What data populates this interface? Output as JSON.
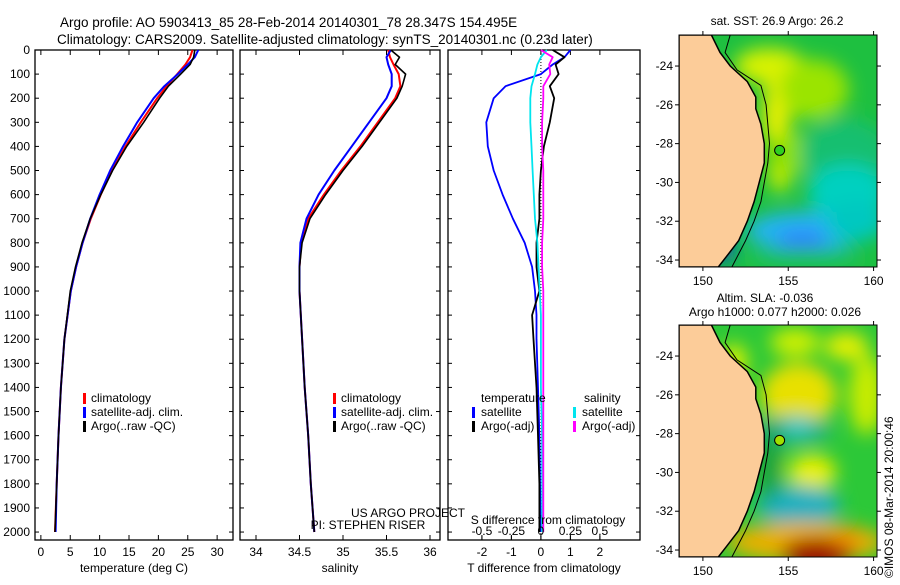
{
  "title": {
    "line1": "Argo profile: AO 5903413_85 28-Feb-2014 20140301_78 28.347S 154.495E",
    "line2": "Climatology: CARS2009. Satellite-adjusted climatology: synTS_20140301.nc (0.23d later)"
  },
  "credit": {
    "line1": "US ARGO PROJECT",
    "line2": "PI: STEPHEN RISER"
  },
  "stamp": "©IMOS 08-Mar-2014 20:00:46",
  "colors": {
    "climatology": "#ff0000",
    "satellite": "#0000ff",
    "argo": "#000000",
    "sal_satellite": "#00e5ee",
    "sal_argo": "#ff00ff",
    "land": "#fccc99"
  },
  "chart_data": [
    {
      "type": "line",
      "id": "temperature",
      "xlabel": "temperature (deg C)",
      "ylabel": "",
      "xlim": [
        -1,
        32.7
      ],
      "ylim": [
        2033,
        0
      ],
      "xticks": [
        0,
        5,
        10,
        15,
        20,
        25,
        30
      ],
      "xtick_labels": [
        "0",
        "5",
        "10",
        "15",
        "20",
        "25",
        "30"
      ],
      "yticks": [
        0,
        100,
        200,
        300,
        400,
        500,
        600,
        700,
        800,
        900,
        1000,
        1100,
        1200,
        1300,
        1400,
        1500,
        1600,
        1700,
        1800,
        1900,
        2000
      ],
      "ytick_labels": [
        "0",
        "100",
        "200",
        "300",
        "400",
        "500",
        "600",
        "700",
        "800",
        "900",
        "1000",
        "1100",
        "1200",
        "1300",
        "1400",
        "1500",
        "1600",
        "1700",
        "1800",
        "1900",
        "2000"
      ],
      "depth": [
        0,
        30,
        60,
        100,
        150,
        200,
        300,
        400,
        500,
        600,
        700,
        800,
        900,
        1000,
        1200,
        1400,
        1600,
        1800,
        2000
      ],
      "legend": [
        "climatology",
        "satellite-adj. clim.",
        "Argo(..raw -QC)"
      ],
      "series": [
        {
          "name": "climatology",
          "values": [
            25.8,
            25.4,
            24.6,
            23.2,
            21.4,
            19.8,
            17.0,
            14.4,
            12.1,
            10.2,
            8.5,
            7.1,
            6.0,
            5.1,
            4.0,
            3.4,
            3.0,
            2.7,
            2.4
          ]
        },
        {
          "name": "satellite-adj. clim.",
          "values": [
            26.8,
            26.2,
            25.0,
            23.3,
            21.0,
            19.2,
            16.4,
            14.0,
            11.8,
            10.0,
            8.4,
            7.1,
            6.0,
            5.1,
            4.0,
            3.4,
            3.0,
            2.7,
            2.5
          ]
        },
        {
          "name": "Argo(..raw -QC)",
          "values": [
            26.2,
            26.0,
            25.4,
            23.8,
            21.7,
            20.2,
            17.5,
            14.6,
            12.2,
            10.2,
            8.4,
            7.0,
            5.9,
            5.0,
            4.0,
            3.4,
            3.0,
            2.7,
            2.4
          ]
        }
      ]
    },
    {
      "type": "line",
      "id": "salinity",
      "xlabel": "salinity",
      "xlim": [
        33.816,
        36.115
      ],
      "ylim": [
        2033,
        0
      ],
      "xticks": [
        34,
        34.5,
        35,
        35.5,
        36
      ],
      "xtick_labels": [
        "34",
        "34.5",
        "35",
        "35.5",
        "36"
      ],
      "depth": [
        0,
        30,
        60,
        100,
        150,
        200,
        300,
        400,
        500,
        600,
        700,
        800,
        900,
        1000,
        1200,
        1400,
        1600,
        1800,
        2000
      ],
      "legend": [
        "climatology",
        "satellite-adj. clim.",
        "Argo(..raw -QC)"
      ],
      "series": [
        {
          "name": "climatology",
          "values": [
            35.52,
            35.54,
            35.58,
            35.64,
            35.66,
            35.6,
            35.4,
            35.2,
            34.98,
            34.78,
            34.6,
            34.52,
            34.5,
            34.5,
            34.53,
            34.56,
            34.6,
            34.63,
            34.67
          ]
        },
        {
          "name": "satellite-adj. clim.",
          "values": [
            35.55,
            35.5,
            35.52,
            35.56,
            35.56,
            35.5,
            35.3,
            35.1,
            34.9,
            34.72,
            34.58,
            34.51,
            34.5,
            34.5,
            34.53,
            34.56,
            34.6,
            34.63,
            34.67
          ]
        },
        {
          "name": "Argo(..raw -QC)",
          "values": [
            35.55,
            35.65,
            35.6,
            35.72,
            35.68,
            35.62,
            35.42,
            35.22,
            35.0,
            34.8,
            34.62,
            34.53,
            34.5,
            34.5,
            34.53,
            34.56,
            34.6,
            34.63,
            34.67
          ]
        }
      ]
    },
    {
      "type": "line",
      "id": "differences",
      "xlabel": "T difference from climatology",
      "x2label": "S difference from climatology",
      "xlim": [
        -3.15,
        3.36
      ],
      "ylim": [
        2033,
        0
      ],
      "xticks": [
        -2,
        -1,
        0,
        1,
        2
      ],
      "xtick_labels": [
        "-2",
        "-1",
        "0",
        "1",
        "2"
      ],
      "x2ticks": [
        -0.5,
        -0.25,
        0,
        0.25,
        0.5
      ],
      "x2tick_labels": [
        "-0.5",
        "-0.25",
        "0",
        "0.25",
        "0.5"
      ],
      "legend": {
        "temperature_title": "temperature",
        "salinity_title": "salinity",
        "items": [
          "satellite",
          "Argo(-adj)",
          "satellite",
          "Argo(-adj)"
        ]
      },
      "depth": [
        0,
        30,
        60,
        100,
        150,
        200,
        300,
        400,
        500,
        600,
        700,
        800,
        900,
        1000,
        1100,
        1200,
        1400,
        1600,
        1800,
        2000
      ],
      "series": [
        {
          "name": "T satellite",
          "units": "degC",
          "values": [
            1.0,
            0.8,
            0.4,
            0.0,
            -1.2,
            -1.6,
            -1.85,
            -1.8,
            -1.6,
            -1.3,
            -0.95,
            -0.55,
            -0.3,
            -0.2,
            -0.15,
            -0.15,
            -0.1,
            -0.05,
            -0.03,
            0.0
          ]
        },
        {
          "name": "T Argo(-adj)",
          "units": "degC",
          "values": [
            0.4,
            0.8,
            0.5,
            0.6,
            0.3,
            0.45,
            0.3,
            0.1,
            0.0,
            -0.05,
            -0.05,
            -0.15,
            -0.15,
            -0.05,
            -0.3,
            -0.25,
            -0.15,
            -0.1,
            -0.05,
            -0.05
          ]
        },
        {
          "name": "S satellite",
          "units": "psu",
          "values": [
            0.05,
            0.0,
            -0.03,
            -0.05,
            -0.08,
            -0.09,
            -0.09,
            -0.08,
            -0.07,
            -0.06,
            -0.05,
            -0.03,
            -0.02,
            -0.01,
            0.0,
            0.0,
            0.0,
            0.01,
            0.01,
            0.01
          ]
        },
        {
          "name": "S Argo(-adj)",
          "units": "psu",
          "values": [
            0.0,
            0.1,
            0.07,
            0.08,
            0.02,
            0.02,
            0.01,
            0.01,
            0.02,
            0.02,
            0.02,
            0.01,
            0.01,
            0.02,
            0.02,
            0.02,
            0.02,
            0.02,
            0.02,
            0.02
          ]
        }
      ]
    },
    {
      "type": "heatmap",
      "id": "sst_map",
      "title": "sat. SST: 26.9 Argo: 26.2",
      "xlim": [
        148.6,
        160.2
      ],
      "ylim": [
        -34.36,
        -22.4
      ],
      "xticks": [
        150,
        155,
        160
      ],
      "xtick_labels": [
        "150",
        "155",
        "160"
      ],
      "yticks": [
        -24,
        -26,
        -28,
        -30,
        -32,
        -34
      ],
      "ytick_labels": [
        "-24",
        "-26",
        "-28",
        "-30",
        "-32",
        "-34"
      ],
      "float_position": [
        154.495,
        -28.347
      ]
    },
    {
      "type": "heatmap",
      "id": "sla_map",
      "title": "Altim. SLA: -0.036",
      "subtitle": "Argo h1000: 0.077 h2000: 0.026",
      "xlim": [
        148.6,
        160.2
      ],
      "ylim": [
        -34.36,
        -22.4
      ],
      "xticks": [
        150,
        155,
        160
      ],
      "xtick_labels": [
        "150",
        "155",
        "160"
      ],
      "yticks": [
        -24,
        -26,
        -28,
        -30,
        -32,
        -34
      ],
      "ytick_labels": [
        "-24",
        "-26",
        "-28",
        "-30",
        "-32",
        "-34"
      ],
      "float_position": [
        154.495,
        -28.347
      ]
    }
  ]
}
